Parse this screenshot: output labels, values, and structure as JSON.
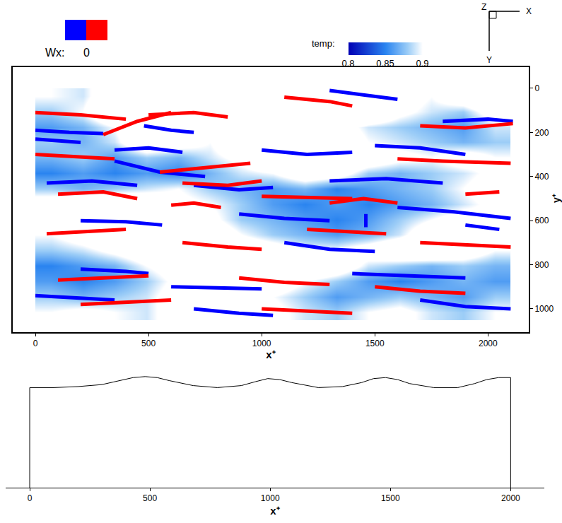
{
  "chart_data": [
    {
      "type": "field",
      "x_label": "x⁺",
      "y_label": "y⁺",
      "xlim": [
        -100,
        2180
      ],
      "xticks": [
        0,
        500,
        1000,
        1500,
        2000
      ],
      "ylim": [
        -96,
        1106
      ],
      "yticks": [
        0,
        200,
        400,
        600,
        800,
        1000
      ],
      "grid": false,
      "temperature": {
        "label": "temp:",
        "range": [
          0.8,
          0.9
        ],
        "ticks": [
          0.8,
          0.85,
          0.9
        ],
        "x": [
          70,
          210,
          350,
          490,
          630,
          770,
          910,
          1050,
          1190,
          1330,
          1470,
          1610,
          1750,
          1890,
          2030
        ],
        "y": [
          35,
          105,
          175,
          245,
          315,
          385,
          455,
          525,
          595,
          665,
          735,
          805,
          875,
          945,
          1015
        ],
        "cells": [
          [
            0.9,
            0.89,
            0.93,
            0.95,
            0.95,
            0.94,
            0.95,
            0.95,
            0.93,
            0.95,
            0.95,
            0.92,
            0.9,
            0.93,
            0.95
          ],
          [
            0.88,
            0.9,
            0.95,
            0.95,
            0.96,
            0.95,
            0.95,
            0.94,
            0.95,
            0.96,
            0.95,
            0.91,
            0.89,
            0.88,
            0.92
          ],
          [
            0.86,
            0.87,
            0.9,
            0.95,
            0.95,
            0.94,
            0.93,
            0.95,
            0.95,
            0.92,
            0.89,
            0.88,
            0.87,
            0.86,
            0.89
          ],
          [
            0.88,
            0.87,
            0.89,
            0.94,
            0.92,
            0.9,
            0.94,
            0.96,
            0.95,
            0.93,
            0.9,
            0.89,
            0.88,
            0.87,
            0.88
          ],
          [
            0.87,
            0.88,
            0.86,
            0.88,
            0.87,
            0.89,
            0.91,
            0.95,
            0.96,
            0.94,
            0.93,
            0.91,
            0.9,
            0.92,
            0.9
          ],
          [
            0.85,
            0.86,
            0.85,
            0.86,
            0.85,
            0.87,
            0.89,
            0.9,
            0.93,
            0.92,
            0.88,
            0.87,
            0.88,
            0.89,
            0.91
          ],
          [
            0.88,
            0.87,
            0.88,
            0.89,
            0.9,
            0.88,
            0.87,
            0.86,
            0.87,
            0.85,
            0.86,
            0.87,
            0.88,
            0.9,
            0.92
          ],
          [
            0.92,
            0.94,
            0.95,
            0.93,
            0.91,
            0.9,
            0.88,
            0.86,
            0.85,
            0.86,
            0.85,
            0.86,
            0.87,
            0.89,
            0.91
          ],
          [
            0.93,
            0.95,
            0.96,
            0.95,
            0.94,
            0.91,
            0.88,
            0.87,
            0.86,
            0.85,
            0.86,
            0.88,
            0.9,
            0.92,
            0.9
          ],
          [
            0.9,
            0.92,
            0.94,
            0.95,
            0.95,
            0.93,
            0.9,
            0.88,
            0.87,
            0.86,
            0.87,
            0.89,
            0.93,
            0.95,
            0.93
          ],
          [
            0.88,
            0.89,
            0.91,
            0.93,
            0.95,
            0.95,
            0.93,
            0.92,
            0.9,
            0.9,
            0.92,
            0.94,
            0.95,
            0.93,
            0.9
          ],
          [
            0.85,
            0.86,
            0.87,
            0.9,
            0.92,
            0.95,
            0.95,
            0.94,
            0.95,
            0.93,
            0.89,
            0.88,
            0.87,
            0.88,
            0.87
          ],
          [
            0.86,
            0.85,
            0.86,
            0.88,
            0.91,
            0.94,
            0.95,
            0.93,
            0.9,
            0.88,
            0.86,
            0.85,
            0.86,
            0.87,
            0.86
          ],
          [
            0.88,
            0.87,
            0.88,
            0.89,
            0.92,
            0.93,
            0.92,
            0.9,
            0.88,
            0.86,
            0.87,
            0.88,
            0.87,
            0.86,
            0.88
          ],
          [
            0.9,
            0.91,
            0.9,
            0.89,
            0.92,
            0.94,
            0.93,
            0.91,
            0.89,
            0.88,
            0.9,
            0.91,
            0.89,
            0.88,
            0.9
          ]
        ]
      },
      "vortex_legend": {
        "label": "Wx:",
        "level": 0
      },
      "series": [
        {
          "color": "#0000ff",
          "segments": [
            [
              [
                0,
                190
              ],
              [
                150,
                200
              ],
              [
                300,
                205
              ]
            ],
            [
              [
                0,
                230
              ],
              [
                200,
                245
              ]
            ],
            [
              [
                480,
                170
              ],
              [
                600,
                190
              ],
              [
                700,
                200
              ]
            ],
            [
              [
                350,
                280
              ],
              [
                500,
                270
              ],
              [
                650,
                290
              ]
            ],
            [
              [
                50,
                430
              ],
              [
                250,
                420
              ],
              [
                450,
                440
              ]
            ],
            [
              [
                350,
                330
              ],
              [
                550,
                380
              ],
              [
                750,
                400
              ]
            ],
            [
              [
                700,
                440
              ],
              [
                900,
                460
              ],
              [
                1050,
                450
              ]
            ],
            [
              [
                1000,
                280
              ],
              [
                1200,
                300
              ],
              [
                1400,
                290
              ]
            ],
            [
              [
                1500,
                260
              ],
              [
                1700,
                270
              ],
              [
                1900,
                300
              ]
            ],
            [
              [
                1300,
                420
              ],
              [
                1550,
                410
              ],
              [
                1800,
                430
              ]
            ],
            [
              [
                1600,
                540
              ],
              [
                1850,
                560
              ],
              [
                2100,
                590
              ]
            ],
            [
              [
                200,
                600
              ],
              [
                400,
                605
              ],
              [
                560,
                620
              ]
            ],
            [
              [
                900,
                570
              ],
              [
                1100,
                590
              ],
              [
                1300,
                600
              ]
            ],
            [
              [
                1100,
                700
              ],
              [
                1300,
                730
              ],
              [
                1500,
                740
              ]
            ],
            [
              [
                200,
                820
              ],
              [
                400,
                830
              ],
              [
                500,
                840
              ]
            ],
            [
              [
                600,
                900
              ],
              [
                800,
                905
              ],
              [
                1000,
                910
              ]
            ],
            [
              [
                1400,
                840
              ],
              [
                1650,
                850
              ],
              [
                1900,
                860
              ]
            ],
            [
              [
                0,
                940
              ],
              [
                200,
                950
              ],
              [
                350,
                960
              ]
            ],
            [
              [
                1700,
                960
              ],
              [
                1900,
                990
              ],
              [
                2100,
                1000
              ]
            ],
            [
              [
                1300,
                10
              ],
              [
                1450,
                30
              ],
              [
                1600,
                50
              ]
            ],
            [
              [
                1460,
                570
              ],
              [
                1460,
                630
              ]
            ],
            [
              [
                1800,
                150
              ],
              [
                2000,
                140
              ],
              [
                2110,
                150
              ]
            ],
            [
              [
                700,
                1000
              ],
              [
                900,
                1020
              ],
              [
                1050,
                1030
              ]
            ],
            [
              [
                1900,
                620
              ],
              [
                2050,
                640
              ]
            ]
          ]
        },
        {
          "color": "#ff0000",
          "segments": [
            [
              [
                0,
                110
              ],
              [
                200,
                120
              ],
              [
                400,
                140
              ]
            ],
            [
              [
                500,
                120
              ],
              [
                700,
                110
              ],
              [
                850,
                130
              ]
            ],
            [
              [
                1100,
                40
              ],
              [
                1300,
                60
              ],
              [
                1400,
                80
              ]
            ],
            [
              [
                0,
                300
              ],
              [
                200,
                310
              ],
              [
                350,
                320
              ]
            ],
            [
              [
                300,
                210
              ],
              [
                450,
                150
              ],
              [
                600,
                110
              ]
            ],
            [
              [
                550,
                380
              ],
              [
                750,
                360
              ],
              [
                950,
                340
              ]
            ],
            [
              [
                100,
                480
              ],
              [
                300,
                470
              ],
              [
                450,
                500
              ]
            ],
            [
              [
                650,
                430
              ],
              [
                850,
                440
              ],
              [
                1000,
                420
              ]
            ],
            [
              [
                1000,
                490
              ],
              [
                1200,
                495
              ],
              [
                1400,
                500
              ]
            ],
            [
              [
                1300,
                520
              ],
              [
                1450,
                500
              ],
              [
                1600,
                520
              ]
            ],
            [
              [
                1600,
                320
              ],
              [
                1800,
                330
              ],
              [
                2100,
                340
              ]
            ],
            [
              [
                1700,
                170
              ],
              [
                1900,
                180
              ],
              [
                2110,
                160
              ]
            ],
            [
              [
                50,
                660
              ],
              [
                250,
                650
              ],
              [
                400,
                640
              ]
            ],
            [
              [
                650,
                700
              ],
              [
                850,
                720
              ],
              [
                1000,
                730
              ]
            ],
            [
              [
                1200,
                640
              ],
              [
                1400,
                650
              ],
              [
                1550,
                660
              ]
            ],
            [
              [
                1700,
                700
              ],
              [
                1900,
                710
              ],
              [
                2100,
                720
              ]
            ],
            [
              [
                100,
                870
              ],
              [
                300,
                860
              ],
              [
                500,
                850
              ]
            ],
            [
              [
                900,
                860
              ],
              [
                1100,
                880
              ],
              [
                1300,
                890
              ]
            ],
            [
              [
                1500,
                900
              ],
              [
                1700,
                920
              ],
              [
                1900,
                930
              ]
            ],
            [
              [
                200,
                980
              ],
              [
                400,
                970
              ],
              [
                600,
                960
              ]
            ],
            [
              [
                1000,
                1000
              ],
              [
                1200,
                1010
              ],
              [
                1400,
                1020
              ]
            ],
            [
              [
                1900,
                480
              ],
              [
                2050,
                470
              ]
            ],
            [
              [
                600,
                530
              ],
              [
                700,
                520
              ],
              [
                820,
                540
              ]
            ]
          ]
        }
      ],
      "axes_icon": [
        "Z",
        "X",
        "Y"
      ]
    },
    {
      "type": "line",
      "x_label": "x⁺",
      "xlim": [
        -100,
        2140
      ],
      "xticks": [
        0,
        500,
        1000,
        1500,
        2000
      ],
      "ylim": [
        0,
        1.13
      ],
      "tick_labels": "x",
      "grid": false,
      "color": "#000000",
      "x": [
        0,
        100,
        200,
        300,
        380,
        430,
        480,
        530,
        580,
        680,
        780,
        880,
        940,
        990,
        1040,
        1090,
        1200,
        1300,
        1380,
        1430,
        1480,
        1530,
        1580,
        1680,
        1780,
        1850,
        1900,
        1950,
        2000
      ],
      "values": [
        1.0,
        1.0,
        1.01,
        1.03,
        1.07,
        1.1,
        1.11,
        1.1,
        1.07,
        1.02,
        1.0,
        1.02,
        1.06,
        1.09,
        1.08,
        1.05,
        1.0,
        1.01,
        1.05,
        1.09,
        1.1,
        1.08,
        1.04,
        1.0,
        1.0,
        1.04,
        1.08,
        1.1,
        1.1
      ]
    }
  ]
}
